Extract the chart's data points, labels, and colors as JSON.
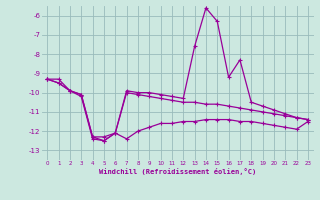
{
  "x": [
    0,
    1,
    2,
    3,
    4,
    5,
    6,
    7,
    8,
    9,
    10,
    11,
    12,
    13,
    14,
    15,
    16,
    17,
    18,
    19,
    20,
    21,
    22,
    23
  ],
  "line_spike": [
    -9.3,
    -9.3,
    -9.9,
    -10.2,
    -12.4,
    -12.5,
    -12.1,
    -9.9,
    -10.0,
    -10.0,
    -10.1,
    -10.2,
    -10.3,
    -7.6,
    -5.6,
    -6.3,
    -9.2,
    -8.3,
    -10.5,
    -10.7,
    -10.9,
    -11.1,
    -11.3,
    -11.4
  ],
  "line_mid": [
    -9.3,
    -9.5,
    -9.9,
    -10.1,
    -12.3,
    -12.3,
    -12.1,
    -10.0,
    -10.1,
    -10.2,
    -10.3,
    -10.4,
    -10.5,
    -10.5,
    -10.6,
    -10.6,
    -10.7,
    -10.8,
    -10.9,
    -11.0,
    -11.1,
    -11.2,
    -11.3,
    -11.4
  ],
  "line_bot": [
    -9.3,
    -9.5,
    -9.9,
    -10.1,
    -12.3,
    -12.5,
    -12.1,
    -12.4,
    -12.0,
    -11.8,
    -11.6,
    -11.6,
    -11.5,
    -11.5,
    -11.4,
    -11.4,
    -11.4,
    -11.5,
    -11.5,
    -11.6,
    -11.7,
    -11.8,
    -11.9,
    -11.5
  ],
  "bg_color": "#cce8e0",
  "line_color": "#990099",
  "grid_color": "#99bbbb",
  "xlabel": "Windchill (Refroidissement éolien,°C)",
  "xlabel_color": "#990099",
  "ylim": [
    -13.5,
    -5.5
  ],
  "xlim": [
    -0.5,
    23.5
  ],
  "yticks": [
    -13,
    -12,
    -11,
    -10,
    -9,
    -8,
    -7,
    -6
  ],
  "xticks": [
    0,
    1,
    2,
    3,
    4,
    5,
    6,
    7,
    8,
    9,
    10,
    11,
    12,
    13,
    14,
    15,
    16,
    17,
    18,
    19,
    20,
    21,
    22,
    23
  ]
}
